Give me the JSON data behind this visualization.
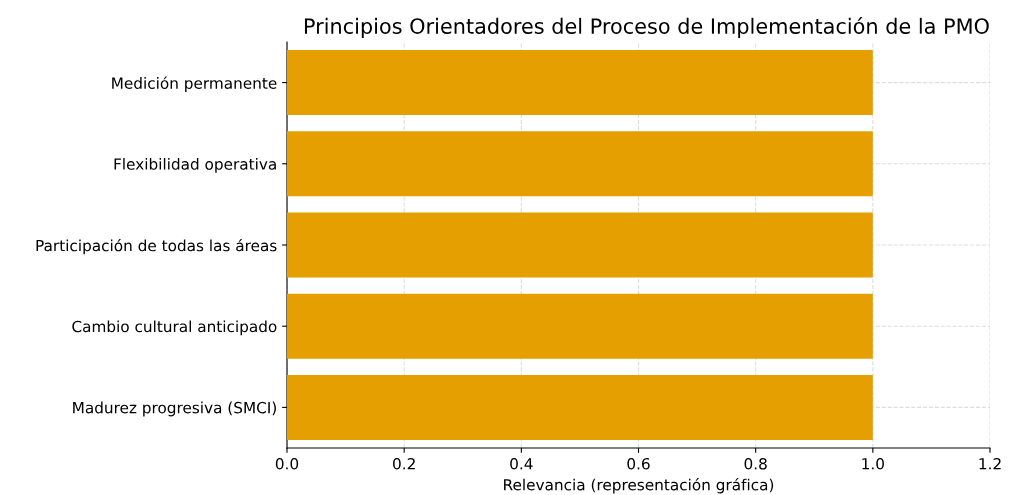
{
  "chart_data": {
    "type": "bar",
    "orientation": "horizontal",
    "title": "Principios Orientadores del Proceso de Implementación de la PMO",
    "xlabel": "Relevancia (representación gráfica)",
    "categories": [
      "Medición permanente",
      "Flexibilidad operativa",
      "Participación de todas las áreas",
      "Cambio cultural anticipado",
      "Madurez progresiva (SMCI)"
    ],
    "values": [
      1.0,
      1.0,
      1.0,
      1.0,
      1.0
    ],
    "color": "#e69f00",
    "xlim": [
      0,
      1.2
    ],
    "xticks": [
      {
        "value": 0,
        "label": "0.0"
      },
      {
        "value": 0.2,
        "label": "0.2"
      },
      {
        "value": 0.4,
        "label": "0.4"
      },
      {
        "value": 0.6,
        "label": "0.6"
      },
      {
        "value": 0.8,
        "label": "0.8"
      },
      {
        "value": 1.0,
        "label": "1.0"
      },
      {
        "value": 1.2,
        "label": "1.2"
      }
    ],
    "grid": true
  }
}
